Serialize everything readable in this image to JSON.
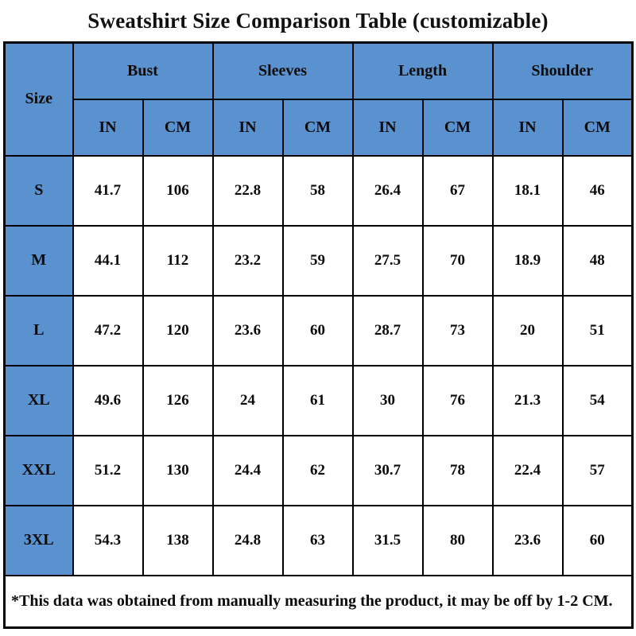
{
  "title": "Sweatshirt Size Comparison Table (customizable)",
  "colors": {
    "header_blue": "#5a92d0",
    "border": "#000000",
    "cell_bg": "#ffffff",
    "text": "#0b0b0b"
  },
  "table": {
    "size_header": "Size",
    "groups": [
      {
        "label": "Bust"
      },
      {
        "label": "Sleeves"
      },
      {
        "label": "Length"
      },
      {
        "label": "Shoulder"
      }
    ],
    "units": [
      "IN",
      "CM",
      "IN",
      "CM",
      "IN",
      "CM",
      "IN",
      "CM"
    ],
    "rows": [
      {
        "size": "S",
        "values": [
          "41.7",
          "106",
          "22.8",
          "58",
          "26.4",
          "67",
          "18.1",
          "46"
        ]
      },
      {
        "size": "M",
        "values": [
          "44.1",
          "112",
          "23.2",
          "59",
          "27.5",
          "70",
          "18.9",
          "48"
        ]
      },
      {
        "size": "L",
        "values": [
          "47.2",
          "120",
          "23.6",
          "60",
          "28.7",
          "73",
          "20",
          "51"
        ]
      },
      {
        "size": "XL",
        "values": [
          "49.6",
          "126",
          "24",
          "61",
          "30",
          "76",
          "21.3",
          "54"
        ]
      },
      {
        "size": "XXL",
        "values": [
          "51.2",
          "130",
          "24.4",
          "62",
          "30.7",
          "78",
          "22.4",
          "57"
        ]
      },
      {
        "size": "3XL",
        "values": [
          "54.3",
          "138",
          "24.8",
          "63",
          "31.5",
          "80",
          "23.6",
          "60"
        ]
      }
    ],
    "footnote": "*This data was obtained from manually measuring the product, it may be off by 1-2 CM."
  }
}
